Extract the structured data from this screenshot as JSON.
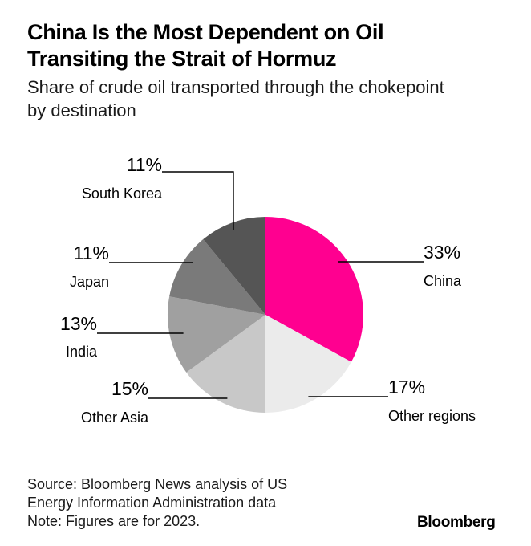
{
  "title_lines": [
    "China Is the Most Dependent on Oil",
    "Transiting the Strait of Hormuz"
  ],
  "subtitle_lines": [
    "Share of crude oil transported through the chokepoint",
    "by destination"
  ],
  "chart_data": {
    "type": "pie",
    "title": "China Is the Most Dependent on Oil Transiting the Strait of Hormuz",
    "subtitle": "Share of crude oil transported through the chokepoint by destination",
    "unit": "%",
    "slices": [
      {
        "label": "China",
        "value": 33,
        "value_label": "33%",
        "color": "#ff0090"
      },
      {
        "label": "Other regions",
        "value": 17,
        "value_label": "17%",
        "color": "#ebebeb"
      },
      {
        "label": "Other Asia",
        "value": 15,
        "value_label": "15%",
        "color": "#c8c8c8"
      },
      {
        "label": "India",
        "value": 13,
        "value_label": "13%",
        "color": "#a0a0a0"
      },
      {
        "label": "Japan",
        "value": 11,
        "value_label": "11%",
        "color": "#7a7a7a"
      },
      {
        "label": "South Korea",
        "value": 11,
        "value_label": "11%",
        "color": "#555555"
      }
    ],
    "start": "12 o'clock",
    "direction": "clockwise"
  },
  "footnote_lines": [
    "Source: Bloomberg News analysis of US",
    "Energy Information Administration data",
    "Note: Figures are for 2023."
  ],
  "brand": "Bloomberg"
}
